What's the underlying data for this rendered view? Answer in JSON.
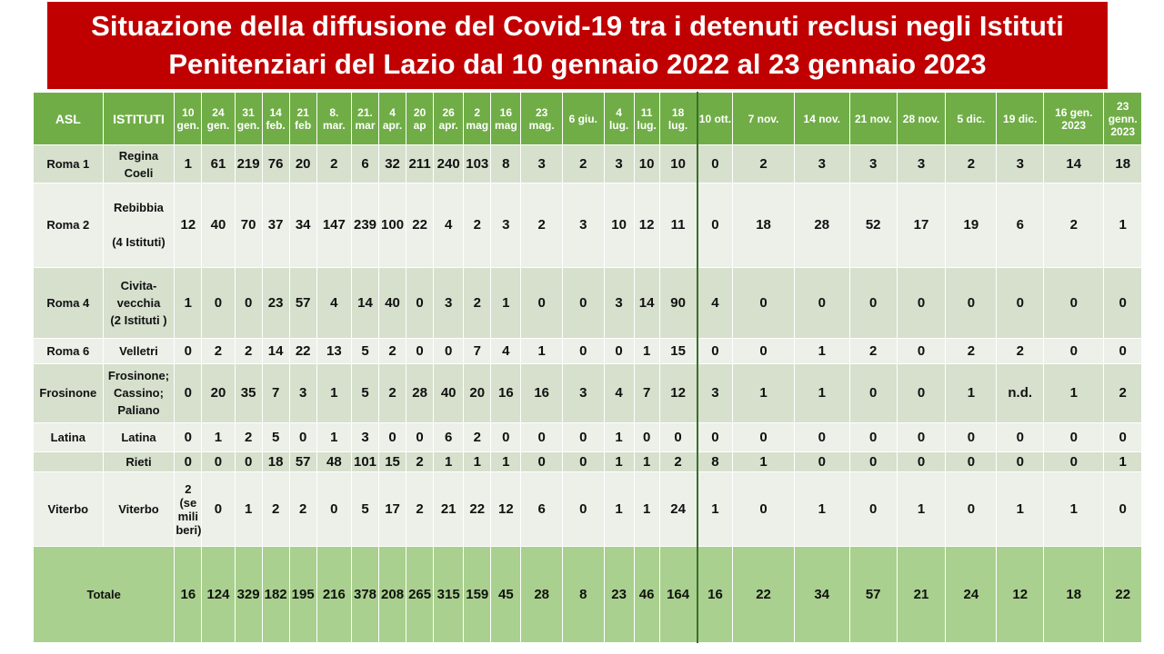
{
  "title": {
    "line1": "Situazione della diffusione del Covid-19 tra i detenuti reclusi negli Istituti",
    "line2": "Penitenziari  del Lazio dal 10 gennaio 2022 al 23 gennaio 2023"
  },
  "header": {
    "asl": "ASL",
    "istituti": "ISTITUTI",
    "dates": [
      "10 gen.",
      "24 gen.",
      "31 gen.",
      "14 feb.",
      "21 feb",
      "8. mar.",
      "21. mar",
      "4 apr.",
      "20 ap",
      "26 apr.",
      "2 mag",
      "16 mag",
      "23 mag.",
      "6 giu.",
      "4 lug.",
      "11 lug.",
      "18 lug.",
      "10 ott.",
      "7 nov.",
      "14 nov.",
      "21 nov.",
      "28 nov.",
      "5 dic.",
      "19 dic.",
      "16 gen. 2023",
      "23 genn. 2023"
    ]
  },
  "rows": [
    {
      "asl": "Roma 1",
      "istituti": [
        "Regina",
        "Coeli"
      ],
      "values": [
        "1",
        "61",
        "219",
        "76",
        "20",
        "2",
        "6",
        "32",
        "211",
        "240",
        "103",
        "8",
        "3",
        "2",
        "3",
        "10",
        "10",
        "0",
        "2",
        "3",
        "3",
        "3",
        "2",
        "3",
        "14",
        "18"
      ]
    },
    {
      "asl": "Roma 2",
      "istituti": [
        "Rebibbia",
        "",
        "(4 Istituti)"
      ],
      "values": [
        "12",
        "40",
        "70",
        "37",
        "34",
        "147",
        "239",
        "100",
        "22",
        "4",
        "2",
        "3",
        "2",
        "3",
        "10",
        "12",
        "11",
        "0",
        "18",
        "28",
        "52",
        "17",
        "19",
        "6",
        "2",
        "1"
      ]
    },
    {
      "asl": "Roma 4",
      "istituti": [
        "Civita-",
        "vecchia",
        "(2 Istituti )"
      ],
      "values": [
        "1",
        "0",
        "0",
        "23",
        "57",
        "4",
        "14",
        "40",
        "0",
        "3",
        "2",
        "1",
        "0",
        "0",
        "3",
        "14",
        "90",
        "4",
        "0",
        "0",
        "0",
        "0",
        "0",
        "0",
        "0",
        "0"
      ]
    },
    {
      "asl": "Roma 6",
      "istituti": [
        "Velletri"
      ],
      "values": [
        "0",
        "2",
        "2",
        "14",
        "22",
        "13",
        "5",
        "2",
        "0",
        "0",
        "7",
        "4",
        "1",
        "0",
        "0",
        "1",
        "15",
        "0",
        "0",
        "1",
        "2",
        "0",
        "2",
        "2",
        "0",
        "0"
      ]
    },
    {
      "asl": "Frosinone",
      "istituti": [
        "Frosinone;",
        "Cassino;",
        "Paliano"
      ],
      "values": [
        "0",
        "20",
        "35",
        "7",
        "3",
        "1",
        "5",
        "2",
        "28",
        "40",
        "20",
        "16",
        "16",
        "3",
        "4",
        "7",
        "12",
        "3",
        "1",
        "1",
        "0",
        "0",
        "1",
        "n.d.",
        "1",
        "2"
      ]
    },
    {
      "asl": "Latina",
      "istituti": [
        "Latina"
      ],
      "values": [
        "0",
        "1",
        "2",
        "5",
        "0",
        "1",
        "3",
        "0",
        "0",
        "6",
        "2",
        "0",
        "0",
        "0",
        "1",
        "0",
        "0",
        "0",
        "0",
        "0",
        "0",
        "0",
        "0",
        "0",
        "0",
        "0"
      ]
    },
    {
      "asl": "",
      "istituti": [
        "Rieti"
      ],
      "values": [
        "0",
        "0",
        "0",
        "18",
        "57",
        "48",
        "101",
        "15",
        "2",
        "1",
        "1",
        "1",
        "0",
        "0",
        "1",
        "1",
        "2",
        "8",
        "1",
        "0",
        "0",
        "0",
        "0",
        "0",
        "0",
        "1"
      ]
    },
    {
      "asl": "Viterbo",
      "istituti": [
        "Viterbo"
      ],
      "values": [
        "2 (se mili beri)",
        "0",
        "1",
        "2",
        "2",
        "0",
        "5",
        "17",
        "2",
        "21",
        "22",
        "12",
        "6",
        "0",
        "1",
        "1",
        "24",
        "1",
        "0",
        "1",
        "0",
        "1",
        "0",
        "1",
        "1",
        "0"
      ]
    }
  ],
  "total": {
    "label": "Totale",
    "values": [
      "16",
      "124",
      "329",
      "182",
      "195",
      "216",
      "378",
      "208",
      "265",
      "315",
      "159",
      "45",
      "28",
      "8",
      "23",
      "46",
      "164",
      "16",
      "22",
      "34",
      "57",
      "21",
      "24",
      "12",
      "18",
      "22"
    ]
  }
}
